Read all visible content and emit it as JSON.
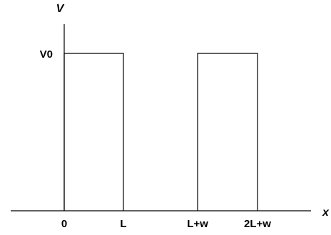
{
  "diagram": {
    "x_axis_label": "x",
    "y_axis_label": "V",
    "level_label": "V0",
    "x_ticks": [
      "0",
      "L",
      "L+w",
      "2L+w"
    ]
  },
  "chart_data": {
    "type": "line",
    "xlabel": "x",
    "ylabel": "V",
    "tick_labels_x": [
      "0",
      "L",
      "L+w",
      "2L+w"
    ],
    "tick_labels_y": [
      "V0"
    ],
    "barriers": [
      {
        "from": "0",
        "to": "L",
        "height": "V0"
      },
      {
        "from": "L+w",
        "to": "2L+w",
        "height": "V0"
      }
    ],
    "grid": false
  }
}
